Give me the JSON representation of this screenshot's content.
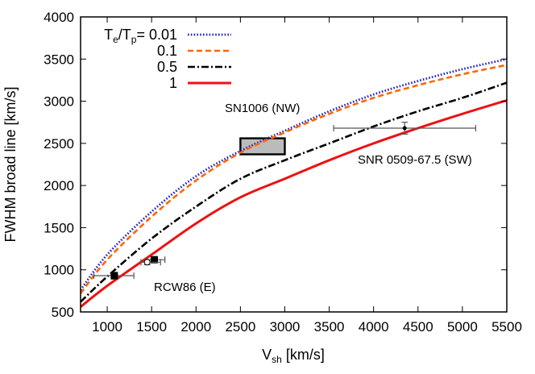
{
  "chart_data": {
    "type": "line",
    "xlabel": "V",
    "xlabel_sub": "sh",
    "xlabel_units": " [km/s]",
    "ylabel": "FWHM broad line  [km/s]",
    "xlim": [
      700,
      5500
    ],
    "ylim": [
      500,
      4000
    ],
    "grid": false,
    "legend_position": "top-left",
    "legend_prefix": {
      "base1": "T",
      "sub1": "e",
      "slash": "/T",
      "sub2": "p",
      "eq": "= "
    },
    "x_ticks": [
      1000,
      1500,
      2000,
      2500,
      3000,
      3500,
      4000,
      4500,
      5000,
      5500
    ],
    "y_ticks": [
      500,
      1000,
      1500,
      2000,
      2500,
      3000,
      3500,
      4000
    ],
    "series": [
      {
        "name": "0.01",
        "color": "#2222cc",
        "style": "dotted",
        "x": [
          700,
          1000,
          1500,
          2000,
          2500,
          3000,
          3500,
          4000,
          4500,
          5000,
          5500
        ],
        "y": [
          760,
          1180,
          1690,
          2110,
          2410,
          2650,
          2880,
          3080,
          3240,
          3380,
          3500
        ]
      },
      {
        "name": "0.1",
        "color": "#ff6600",
        "style": "dashed",
        "x": [
          700,
          1000,
          1500,
          2000,
          2500,
          3000,
          3500,
          4000,
          4500,
          5000,
          5500
        ],
        "y": [
          720,
          1120,
          1630,
          2060,
          2390,
          2630,
          2850,
          3040,
          3190,
          3320,
          3430
        ]
      },
      {
        "name": "0.5",
        "color": "#000000",
        "style": "dashdot",
        "x": [
          700,
          1000,
          1500,
          2000,
          2500,
          3000,
          3500,
          4000,
          4500,
          5000,
          5500
        ],
        "y": [
          620,
          920,
          1370,
          1750,
          2080,
          2300,
          2500,
          2700,
          2880,
          3040,
          3220
        ]
      },
      {
        "name": "1",
        "color": "#ee1111",
        "style": "solid",
        "x": [
          700,
          1000,
          1500,
          2000,
          2500,
          3000,
          3500,
          4000,
          4500,
          5000,
          5500
        ],
        "y": [
          560,
          810,
          1180,
          1550,
          1860,
          2080,
          2300,
          2500,
          2680,
          2850,
          3010
        ]
      }
    ],
    "regions": [
      {
        "label": "SN1006 (NW)",
        "x_range": [
          2500,
          3000
        ],
        "y_range": [
          2370,
          2560
        ],
        "fill": "#bbbbbb"
      }
    ],
    "points": [
      {
        "label": "SNR 0509-67.5 (SW)",
        "x": 4350,
        "y": 2680,
        "x_err": [
          3550,
          5150
        ],
        "y_err": [
          2610,
          2750
        ],
        "marker": "dot"
      },
      {
        "label": "RCW86 (E)",
        "x": 1080,
        "y": 930,
        "x_err": [
          850,
          1300
        ],
        "y_err": [
          890,
          970
        ],
        "marker": "square"
      },
      {
        "label": "",
        "x": 1530,
        "y": 1120,
        "x_err": [
          1450,
          1650
        ],
        "y_err": [
          1090,
          1150
        ],
        "marker": "square"
      },
      {
        "label": "",
        "x": 1450,
        "y": 1090,
        "x_err": [
          1380,
          1600
        ],
        "y_err": [
          1060,
          1120
        ],
        "marker": "open-circle"
      }
    ]
  }
}
